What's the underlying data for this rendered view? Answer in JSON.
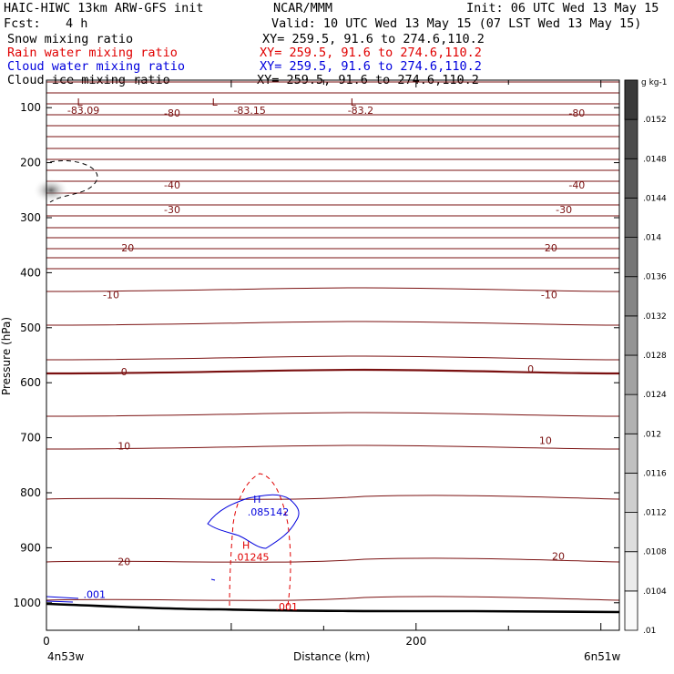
{
  "header": {
    "title": "HAIC-HIWC 13km ARW-GFS init",
    "org": "NCAR/MMM",
    "init": "Init: 06 UTC Wed 13 May 15",
    "fcst_label": "Fcst:",
    "fcst_value": "4 h",
    "valid": "Valid: 10 UTC Wed 13 May 15 (07 LST Wed 13 May 15)",
    "fields": [
      {
        "name": "Snow mixing ratio",
        "xy": "XY= 259.5, 91.6 to 274.6,110.2",
        "color": "#000000"
      },
      {
        "name": "Rain water mixing ratio",
        "xy": "XY= 259.5, 91.6 to 274.6,110.2",
        "color": "#e00000"
      },
      {
        "name": "Cloud water mixing ratio",
        "xy": "XY= 259.5, 91.6 to 274.6,110.2",
        "color": "#0000dd"
      },
      {
        "name": "Cloud ice mixing ratio",
        "xy": "XY= 259.5, 91.6 to 274.6,110.2",
        "color": "#000000"
      }
    ]
  },
  "chart_data": {
    "type": "contour",
    "xlabel": "Distance (km)",
    "ylabel": "Pressure (hPa)",
    "xlim": [
      0,
      310
    ],
    "ylim": [
      1050,
      50
    ],
    "x_ticks": [
      0,
      200
    ],
    "y_ticks": [
      100,
      200,
      300,
      400,
      500,
      600,
      700,
      800,
      900,
      1000
    ],
    "x_start_label": "4n53w",
    "x_end_label": "6n51w",
    "colorbar": {
      "units": "g kg-1",
      "labels": [
        ".01",
        ".0104",
        ".0108",
        ".0112",
        ".0116",
        ".012",
        ".0124",
        ".0128",
        ".0132",
        ".0136",
        ".014",
        ".0144",
        ".0148",
        ".0152"
      ]
    },
    "temperature_labels": [
      {
        "text": "-83.09",
        "x": 20,
        "p": 105
      },
      {
        "text": "-83.15",
        "x": 110,
        "p": 105
      },
      {
        "text": "-83.2",
        "x": 170,
        "p": 105
      },
      {
        "text": "-80",
        "x": 68,
        "p": 110
      },
      {
        "text": "-80",
        "x": 287,
        "p": 110
      },
      {
        "text": "-40",
        "x": 68,
        "p": 240
      },
      {
        "text": "-40",
        "x": 287,
        "p": 240
      },
      {
        "text": "-30",
        "x": 68,
        "p": 285
      },
      {
        "text": "-30",
        "x": 280,
        "p": 285
      },
      {
        "text": "-20",
        "x": 43,
        "p": 355
      },
      {
        "text": "-20",
        "x": 272,
        "p": 355
      },
      {
        "text": "-10",
        "x": 35,
        "p": 440
      },
      {
        "text": "-10",
        "x": 272,
        "p": 440
      },
      {
        "text": "0",
        "x": 42,
        "p": 580
      },
      {
        "text": "0",
        "x": 262,
        "p": 575
      },
      {
        "text": "10",
        "x": 42,
        "p": 715
      },
      {
        "text": "10",
        "x": 270,
        "p": 705
      },
      {
        "text": "20",
        "x": 42,
        "p": 925
      },
      {
        "text": "20",
        "x": 277,
        "p": 915
      }
    ],
    "low_markers": [
      {
        "text": "L",
        "x": 18,
        "p": 90
      },
      {
        "text": "L",
        "x": 91,
        "p": 90
      },
      {
        "text": "L",
        "x": 166,
        "p": 90
      }
    ],
    "cloud_water_max": {
      "text": ".085142",
      "marker": "H",
      "x": 115,
      "p": 835
    },
    "rain_water_max": {
      "text": ".01245",
      "marker": "H",
      "x": 108,
      "p": 915
    },
    "cloud_water_surface_label": ".001",
    "rain_water_surface_label": ".001"
  }
}
